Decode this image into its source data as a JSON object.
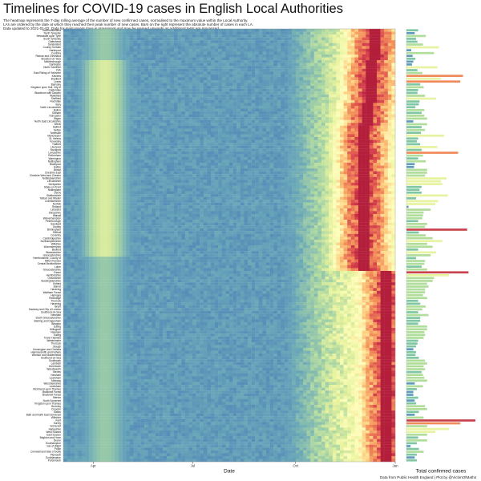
{
  "header": {
    "title": "Timelines for COVID-19 cases in English Local Authorities",
    "description_lines": [
      "The heatmap represents the 7-day rolling average of the number of new confirmed cases, normalised to the maximum value within the Local Authority.",
      "LAs are ordered by the date at which they reached their peak number of new cases. Bars on the right represent the absolute number of cases in each LA.",
      "Data updated to 2021-01-02. Data for most recent days is provisional and may be revised upwards as additional tests are processed."
    ]
  },
  "caption": "Data from Public Health England | Plot by @VictimOfMaths",
  "chart_data": {
    "type": "heatmap",
    "xlabel": "Date",
    "x_ticks": [
      "Apr",
      "Jul",
      "Oct",
      "Jan"
    ],
    "bar_xlabel": "Total confirmed cases",
    "color_scale": [
      "#4a7cb7",
      "#6aa7b9",
      "#a6d4a4",
      "#e6f29d",
      "#fefebd",
      "#fdcf81",
      "#f38c58",
      "#d8444e",
      "#b31e3b"
    ],
    "local_authorities": [
      {
        "name": "Northumberland",
        "peak": 0.93,
        "total": 0.17
      },
      {
        "name": "North Tyneside",
        "peak": 0.93,
        "total": 0.12
      },
      {
        "name": "Newcastle upon Tyne",
        "peak": 0.93,
        "total": 0.28
      },
      {
        "name": "South Tyneside",
        "peak": 0.93,
        "total": 0.14
      },
      {
        "name": "Gateshead",
        "peak": 0.93,
        "total": 0.16
      },
      {
        "name": "Sunderland",
        "peak": 0.93,
        "total": 0.24
      },
      {
        "name": "County Durham",
        "peak": 0.93,
        "total": 0.47
      },
      {
        "name": "Hartlepool",
        "peak": 0.93,
        "total": 0.07
      },
      {
        "name": "Cumbria",
        "peak": 0.93,
        "total": 0.4
      },
      {
        "name": "Redcar and Cleveland",
        "peak": 0.93,
        "total": 0.09
      },
      {
        "name": "Stockton-on-Tees",
        "peak": 0.93,
        "total": 0.13
      },
      {
        "name": "Middlesbrough",
        "peak": 0.92,
        "total": 0.1
      },
      {
        "name": "Darlington",
        "peak": 0.92,
        "total": 0.08
      },
      {
        "name": "North Yorkshire",
        "peak": 0.92,
        "total": 0.45
      },
      {
        "name": "York",
        "peak": 0.92,
        "total": 0.16
      },
      {
        "name": "East Riding of Yorkshire",
        "peak": 0.92,
        "total": 0.23
      },
      {
        "name": "Kirklees",
        "peak": 0.92,
        "total": 0.82
      },
      {
        "name": "Bradford",
        "peak": 0.92,
        "total": 0.5
      },
      {
        "name": "Leeds",
        "peak": 0.92,
        "total": 0.78
      },
      {
        "name": "Barnsley",
        "peak": 0.92,
        "total": 0.2
      },
      {
        "name": "Kingston upon Hull, City of",
        "peak": 0.92,
        "total": 0.25
      },
      {
        "name": "Calderdale",
        "peak": 0.92,
        "total": 0.17
      },
      {
        "name": "Blackburn with Darwen",
        "peak": 0.92,
        "total": 0.16
      },
      {
        "name": "Wakefield",
        "peak": 0.92,
        "total": 0.27
      },
      {
        "name": "Sheffield",
        "peak": 0.92,
        "total": 0.43
      },
      {
        "name": "Rochdale",
        "peak": 0.92,
        "total": 0.19
      },
      {
        "name": "Bury",
        "peak": 0.91,
        "total": 0.18
      },
      {
        "name": "North Lincolnshire",
        "peak": 0.91,
        "total": 0.13
      },
      {
        "name": "Bolton",
        "peak": 0.91,
        "total": 0.26
      },
      {
        "name": "Oldham",
        "peak": 0.91,
        "total": 0.22
      },
      {
        "name": "Doncaster",
        "peak": 0.91,
        "total": 0.26
      },
      {
        "name": "Wigan",
        "peak": 0.91,
        "total": 0.3
      },
      {
        "name": "North East Lincolnshire",
        "peak": 0.91,
        "total": 0.1
      },
      {
        "name": "Wirral",
        "peak": 0.91,
        "total": 0.3
      },
      {
        "name": "Salford",
        "peak": 0.9,
        "total": 0.22
      },
      {
        "name": "Sefton",
        "peak": 0.9,
        "total": 0.27
      },
      {
        "name": "Tameside",
        "peak": 0.9,
        "total": 0.21
      },
      {
        "name": "Manchester",
        "peak": 0.9,
        "total": 0.55
      },
      {
        "name": "St. Helens",
        "peak": 0.9,
        "total": 0.17
      },
      {
        "name": "Knowsley",
        "peak": 0.9,
        "total": 0.15
      },
      {
        "name": "Trafford",
        "peak": 0.9,
        "total": 0.2
      },
      {
        "name": "Liverpool",
        "peak": 0.9,
        "total": 0.45
      },
      {
        "name": "Stockport",
        "peak": 0.9,
        "total": 0.22
      },
      {
        "name": "Lancashire",
        "peak": 0.9,
        "total": 0.75
      },
      {
        "name": "Rotherham",
        "peak": 0.9,
        "total": 0.24
      },
      {
        "name": "Warrington",
        "peak": 0.9,
        "total": 0.17
      },
      {
        "name": "Nottingham",
        "peak": 0.9,
        "total": 0.28
      },
      {
        "name": "Blackpool",
        "peak": 0.9,
        "total": 0.12
      },
      {
        "name": "Halton",
        "peak": 0.9,
        "total": 0.11
      },
      {
        "name": "Bristol",
        "peak": 0.9,
        "total": 0.3
      },
      {
        "name": "Cheshire East",
        "peak": 0.9,
        "total": 0.3
      },
      {
        "name": "Cheshire West and Chester",
        "peak": 0.9,
        "total": 0.27
      },
      {
        "name": "Nottinghamshire",
        "peak": 0.9,
        "total": 0.58
      },
      {
        "name": "Lincolnshire",
        "peak": 0.9,
        "total": 0.5
      },
      {
        "name": "Derbyshire",
        "peak": 0.9,
        "total": 0.52
      },
      {
        "name": "Stoke-on-Trent",
        "peak": 0.9,
        "total": 0.22
      },
      {
        "name": "Nottingham",
        "peak": 0.9,
        "total": 0.19
      },
      {
        "name": "Derby",
        "peak": 0.9,
        "total": 0.22
      },
      {
        "name": "Staffordshire",
        "peak": 0.9,
        "total": 0.6
      },
      {
        "name": "Telford and Wrekin",
        "peak": 0.9,
        "total": 0.14
      },
      {
        "name": "Leicestershire",
        "peak": 0.9,
        "total": 0.46
      },
      {
        "name": "Norfolk",
        "peak": 0.9,
        "total": 0.42
      },
      {
        "name": "Rutland",
        "peak": 0.9,
        "total": 0.03
      },
      {
        "name": "Leicester",
        "peak": 0.9,
        "total": 0.35
      },
      {
        "name": "Shropshire",
        "peak": 0.9,
        "total": 0.25
      },
      {
        "name": "Walsall",
        "peak": 0.9,
        "total": 0.24
      },
      {
        "name": "Wolverhampton",
        "peak": 0.9,
        "total": 0.23
      },
      {
        "name": "Peterborough",
        "peak": 0.9,
        "total": 0.17
      },
      {
        "name": "Sandwell",
        "peak": 0.9,
        "total": 0.3
      },
      {
        "name": "Dudley",
        "peak": 0.9,
        "total": 0.27
      },
      {
        "name": "Birmingham",
        "peak": 0.9,
        "total": 0.88
      },
      {
        "name": "Solihull",
        "peak": 0.9,
        "total": 0.18
      },
      {
        "name": "Coventry",
        "peak": 0.9,
        "total": 0.28
      },
      {
        "name": "Cambridgeshire",
        "peak": 0.9,
        "total": 0.38
      },
      {
        "name": "Northamptonshire",
        "peak": 0.9,
        "total": 0.52
      },
      {
        "name": "Wiltshire",
        "peak": 0.9,
        "total": 0.3
      },
      {
        "name": "Worcestershire",
        "peak": 0.9,
        "total": 0.38
      },
      {
        "name": "Bedford",
        "peak": 0.9,
        "total": 0.17
      },
      {
        "name": "Warwickshire",
        "peak": 0.9,
        "total": 0.43
      },
      {
        "name": "Gloucestershire",
        "peak": 0.9,
        "total": 0.35
      },
      {
        "name": "Herefordshire, County of",
        "peak": 0.9,
        "total": 0.14
      },
      {
        "name": "Milton Keynes",
        "peak": 0.9,
        "total": 0.27
      },
      {
        "name": "Central Bedfordshire",
        "peak": 0.9,
        "total": 0.26
      },
      {
        "name": "Luton",
        "peak": 0.9,
        "total": 0.22
      },
      {
        "name": "Gloucestershire",
        "peak": 0.9,
        "total": 0.3
      },
      {
        "name": "Essex",
        "peak": 0.97,
        "total": 0.9
      },
      {
        "name": "Hertfordshire",
        "peak": 0.97,
        "total": 0.62
      },
      {
        "name": "Oxfordshire",
        "peak": 0.97,
        "total": 0.4
      },
      {
        "name": "Buckinghamshire",
        "peak": 0.97,
        "total": 0.38
      },
      {
        "name": "Enfield",
        "peak": 0.97,
        "total": 0.3
      },
      {
        "name": "Barnet",
        "peak": 0.97,
        "total": 0.32
      },
      {
        "name": "Havering",
        "peak": 0.97,
        "total": 0.27
      },
      {
        "name": "Waltham Forest",
        "peak": 0.97,
        "total": 0.27
      },
      {
        "name": "Haringey",
        "peak": 0.97,
        "total": 0.24
      },
      {
        "name": "Redbridge",
        "peak": 0.97,
        "total": 0.3
      },
      {
        "name": "Thurrock",
        "peak": 0.97,
        "total": 0.17
      },
      {
        "name": "Havering",
        "peak": 0.97,
        "total": 0.2
      },
      {
        "name": "Brent",
        "peak": 0.97,
        "total": 0.28
      },
      {
        "name": "Hackney and City of London",
        "peak": 0.97,
        "total": 0.23
      },
      {
        "name": "Southend-on-Sea",
        "peak": 0.97,
        "total": 0.17
      },
      {
        "name": "Newham",
        "peak": 0.97,
        "total": 0.32
      },
      {
        "name": "South Gloucestershire",
        "peak": 0.97,
        "total": 0.2
      },
      {
        "name": "Barking and Dagenham",
        "peak": 0.97,
        "total": 0.2
      },
      {
        "name": "Islington",
        "peak": 0.97,
        "total": 0.17
      },
      {
        "name": "Ealing",
        "peak": 0.97,
        "total": 0.3
      },
      {
        "name": "Hillingdon",
        "peak": 0.97,
        "total": 0.3
      },
      {
        "name": "Newham",
        "peak": 0.97,
        "total": 0.26
      },
      {
        "name": "Ealing",
        "peak": 0.97,
        "total": 0.27
      },
      {
        "name": "Tower Hamlets",
        "peak": 0.97,
        "total": 0.25
      },
      {
        "name": "Westminster",
        "peak": 0.97,
        "total": 0.17
      },
      {
        "name": "Thurrock",
        "peak": 0.97,
        "total": 0.16
      },
      {
        "name": "Slough",
        "peak": 0.97,
        "total": 0.14
      },
      {
        "name": "Kensington and Chelsea",
        "peak": 0.97,
        "total": 0.1
      },
      {
        "name": "Hammersmith and Fulham",
        "peak": 0.97,
        "total": 0.14
      },
      {
        "name": "Windsor and Maidenhead",
        "peak": 0.97,
        "total": 0.13
      },
      {
        "name": "Southend-on-Sea",
        "peak": 0.97,
        "total": 0.18
      },
      {
        "name": "Southwark",
        "peak": 0.97,
        "total": 0.27
      },
      {
        "name": "Lambeth",
        "peak": 0.97,
        "total": 0.3
      },
      {
        "name": "Greenwich",
        "peak": 0.97,
        "total": 0.25
      },
      {
        "name": "Wandsworth",
        "peak": 0.97,
        "total": 0.27
      },
      {
        "name": "Bexley",
        "peak": 0.97,
        "total": 0.22
      },
      {
        "name": "Newham",
        "peak": 0.97,
        "total": 0.24
      },
      {
        "name": "Lewisham",
        "peak": 0.97,
        "total": 0.26
      },
      {
        "name": "Medway",
        "peak": 0.97,
        "total": 0.3
      },
      {
        "name": "West Berkshire",
        "peak": 0.97,
        "total": 0.12
      },
      {
        "name": "Lewisham",
        "peak": 0.97,
        "total": 0.24
      },
      {
        "name": "Richmond upon Thames",
        "peak": 0.97,
        "total": 0.15
      },
      {
        "name": "Bracknell Forest",
        "peak": 0.97,
        "total": 0.1
      },
      {
        "name": "Bracknell Forest",
        "peak": 0.97,
        "total": 0.1
      },
      {
        "name": "Merton",
        "peak": 0.97,
        "total": 0.17
      },
      {
        "name": "North Somerset",
        "peak": 0.97,
        "total": 0.12
      },
      {
        "name": "Kingston upon Thames",
        "peak": 0.97,
        "total": 0.14
      },
      {
        "name": "Bromley",
        "peak": 0.97,
        "total": 0.27
      },
      {
        "name": "Croydon",
        "peak": 0.97,
        "total": 0.3
      },
      {
        "name": "Sutton",
        "peak": 0.97,
        "total": 0.18
      },
      {
        "name": "Bath and North East Somerset",
        "peak": 0.97,
        "total": 0.12
      },
      {
        "name": "Wiltshire",
        "peak": 0.97,
        "total": 0.25
      },
      {
        "name": "Kent",
        "peak": 0.97,
        "total": 1.0
      },
      {
        "name": "Surrey",
        "peak": 0.97,
        "total": 0.78
      },
      {
        "name": "Somerset",
        "peak": 0.97,
        "total": 0.3
      },
      {
        "name": "Hampshire",
        "peak": 0.97,
        "total": 0.62
      },
      {
        "name": "West Sussex",
        "peak": 0.97,
        "total": 0.42
      },
      {
        "name": "East Sussex",
        "peak": 0.97,
        "total": 0.3
      },
      {
        "name": "Brighton and Hove",
        "peak": 0.97,
        "total": 0.17
      },
      {
        "name": "Devon",
        "peak": 0.97,
        "total": 0.3
      },
      {
        "name": "Southampton",
        "peak": 0.97,
        "total": 0.15
      },
      {
        "name": "Isle of Wight",
        "peak": 0.97,
        "total": 0.06
      },
      {
        "name": "Poole",
        "peak": 0.97,
        "total": 0.18
      },
      {
        "name": "Cornwall and Isles of Scilly",
        "peak": 0.97,
        "total": 0.25
      },
      {
        "name": "Plymouth",
        "peak": 0.97,
        "total": 0.15
      },
      {
        "name": "Southampton",
        "peak": 0.97,
        "total": 0.12
      },
      {
        "name": "Portsmouth",
        "peak": 0.97,
        "total": 0.15
      }
    ]
  }
}
